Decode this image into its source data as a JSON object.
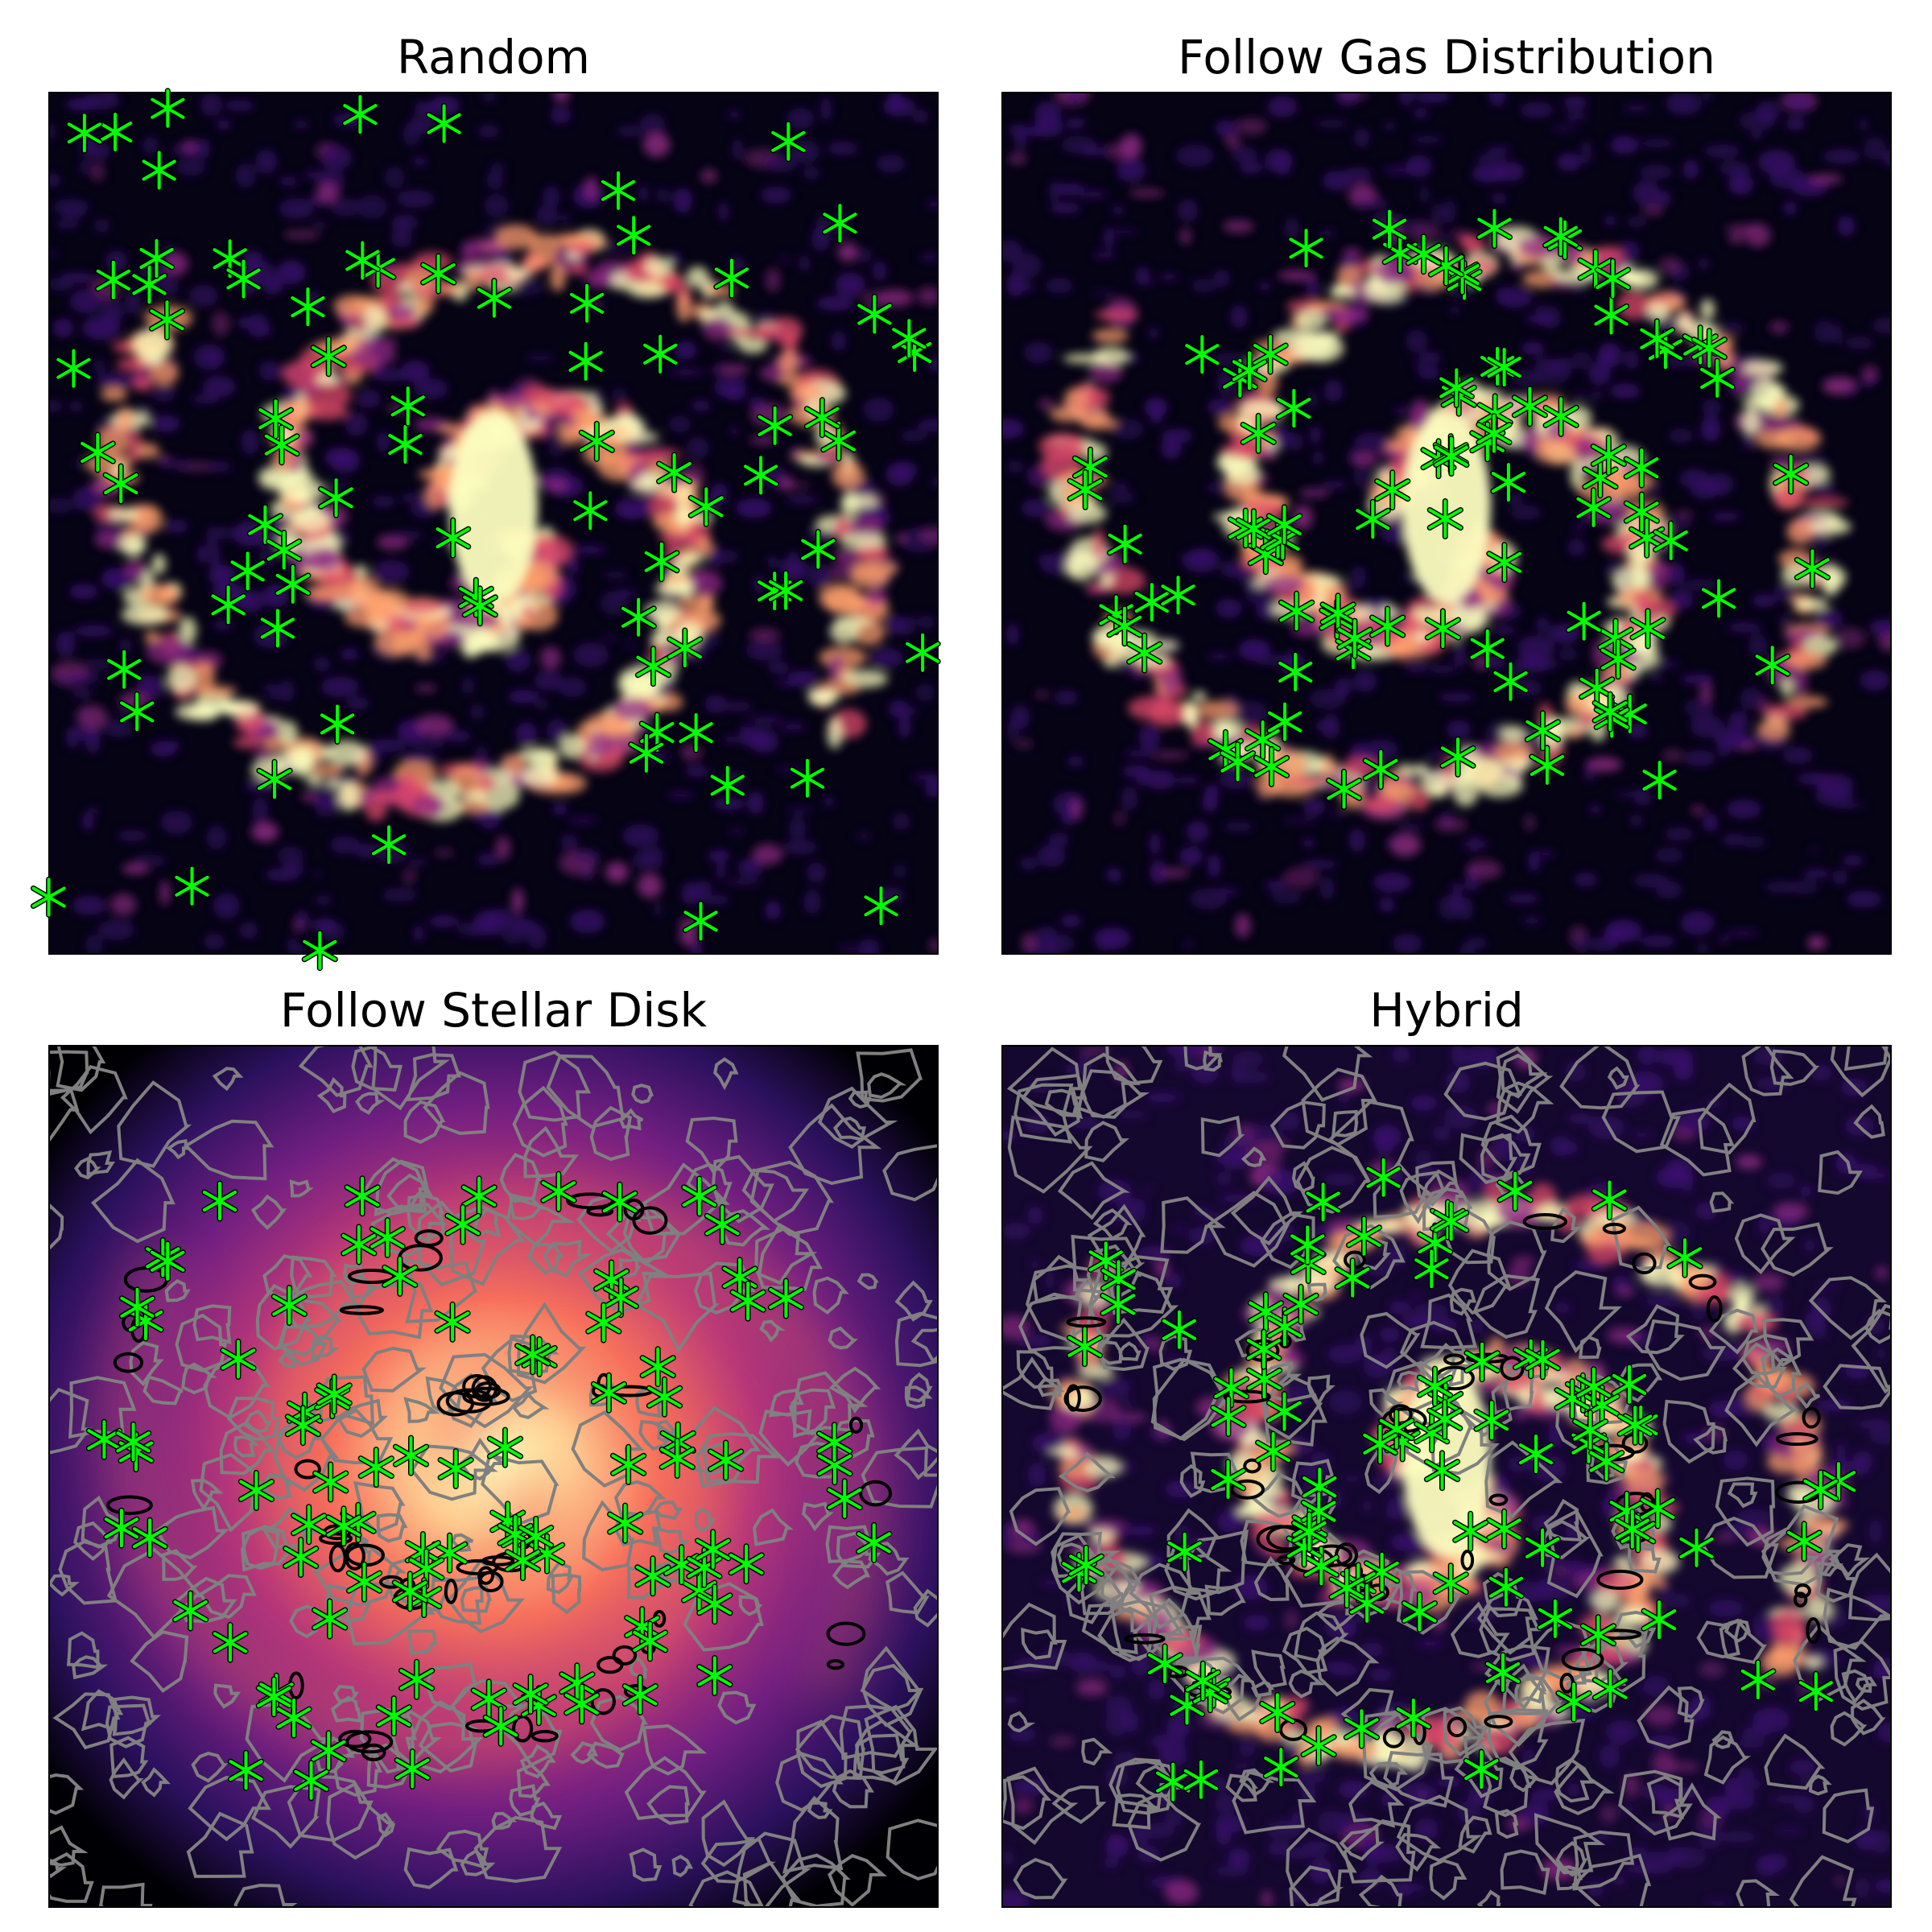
{
  "figure": {
    "panels": [
      {
        "title": "Random",
        "background": "gas",
        "contours": false,
        "marker_count": 77,
        "seed": 11
      },
      {
        "title": "Follow Gas Distribution",
        "background": "gas",
        "contours": false,
        "marker_count": 96,
        "seed": 23
      },
      {
        "title": "Follow Stellar Disk",
        "background": "stellar",
        "contours": true,
        "marker_count": 98,
        "seed": 37
      },
      {
        "title": "Hybrid",
        "background": "hybrid",
        "contours": true,
        "marker_count": 99,
        "seed": 51
      }
    ],
    "colormap": "magma",
    "colors": {
      "marker": "#00ff00",
      "marker_edge": "#000000",
      "contour_outer": "#808080",
      "contour_inner": "#000000"
    },
    "marker_symbol": "*"
  }
}
